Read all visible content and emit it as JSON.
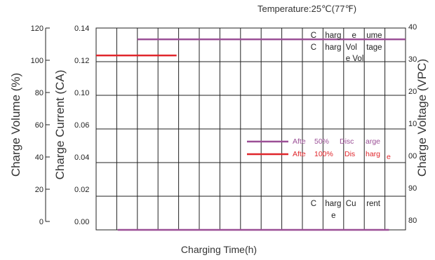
{
  "chart_data": {
    "type": "line",
    "title": "",
    "temperature_note": "Temperature:25℃(77℉)",
    "xlabel": "Charging Time(h)",
    "x_ticks": [],
    "x_ticks_note": "x tick labels are illegible (overlapping) in the source",
    "grid": true,
    "grid_columns": 15,
    "grid_rows": 6,
    "axes": {
      "charge_volume": {
        "title": "Charge Volume (%)",
        "ylim": [
          0,
          120
        ],
        "ticks": [
          "120",
          "100",
          "80",
          "60",
          "40",
          "20",
          "0"
        ]
      },
      "charge_current": {
        "title": "Charge Current (CA)",
        "ylim": [
          0,
          0.14
        ],
        "ticks": [
          "0.14",
          "0.12",
          "0.10",
          "0.06",
          "0.04",
          "0.02",
          "0.00"
        ]
      },
      "charge_voltage": {
        "title": "Charge Voltage (VPC)",
        "ticks": [
          "2.40",
          "2.30",
          "2.20",
          "2.10",
          "2.00",
          "1.90",
          "1.80"
        ],
        "tick_display": [
          "40",
          "30",
          "20",
          "10",
          "00",
          "90",
          "80"
        ]
      }
    },
    "series": [
      {
        "name": "After 50% Discharge",
        "color": "#9b4f96",
        "axis": "charge_volume",
        "legend_fragments": [
          "Afte",
          "50%",
          "Disc",
          "arge"
        ],
        "points": [
          [
            1.05,
            0
          ],
          [
            14.2,
            0
          ]
        ]
      },
      {
        "name": "After 100% Discharge",
        "color": "#e0262b",
        "axis": "charge_volume",
        "legend_fragments": [
          "Afte",
          "100%",
          "Dis",
          "harg",
          "e"
        ],
        "points": [
          [
            0,
            103
          ],
          [
            3.9,
            103
          ]
        ]
      },
      {
        "name": "Charge Volume",
        "color": "#9b4f96",
        "axis": "charge_volume",
        "points": [
          [
            2.0,
            113
          ],
          [
            15.0,
            113
          ]
        ]
      }
    ],
    "annotations": [
      {
        "name": "Charge Voltage",
        "fragments": [
          {
            "text": "C",
            "col": 10,
            "row": 0,
            "line": 0
          },
          {
            "text": "harg",
            "col": 11,
            "row": 0,
            "line": 0
          },
          {
            "text": "e",
            "col": 12,
            "row": 0,
            "line": 0
          },
          {
            "text": "ume",
            "col": 13,
            "row": 0,
            "line": 0
          },
          {
            "text": "C",
            "col": 10,
            "row": 0,
            "line": 1
          },
          {
            "text": "harg",
            "col": 11,
            "row": 0,
            "line": 1
          },
          {
            "text": "Vol",
            "col": 12,
            "row": 0,
            "line": 1
          },
          {
            "text": "tage",
            "col": 13,
            "row": 0,
            "line": 1
          },
          {
            "text": "e Vol",
            "col": 12,
            "row": 0,
            "line": 2
          }
        ]
      },
      {
        "name": "Charge Current",
        "fragments": [
          {
            "text": "C",
            "col": 10,
            "row": 5,
            "line": 0
          },
          {
            "text": "harg",
            "col": 11,
            "row": 5,
            "line": 0
          },
          {
            "text": "Cu",
            "col": 12,
            "row": 5,
            "line": 0
          },
          {
            "text": "rent",
            "col": 13,
            "row": 5,
            "line": 0
          },
          {
            "text": "e",
            "col": 11,
            "row": 5,
            "line": 1
          }
        ]
      }
    ]
  }
}
